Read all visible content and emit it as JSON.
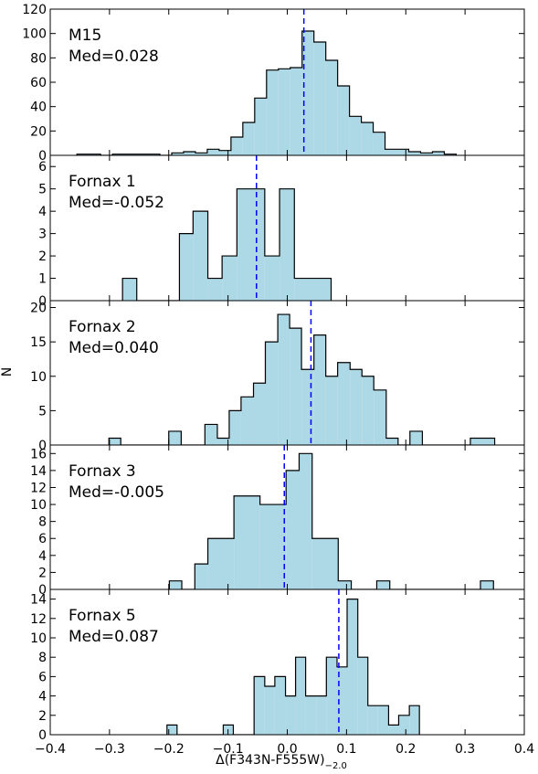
{
  "chart_data": {
    "type": "histogram",
    "shared_x": {
      "xlim": [
        -0.4,
        0.4
      ],
      "ticks": [
        -0.4,
        -0.3,
        -0.2,
        -0.1,
        0.0,
        0.1,
        0.2,
        0.3,
        0.4
      ],
      "tick_labels": [
        "−0.4",
        "−0.3",
        "−0.2",
        "−0.1",
        "0.0",
        "0.1",
        "0.2",
        "0.3",
        "0.4"
      ],
      "xlabel_main": "Δ(F343N-F555W)",
      "xlabel_sub": "−2.0"
    },
    "shared_ylabel": "N",
    "fill_color": "#add8e6",
    "median_line_color": "#0000ff",
    "panels": [
      {
        "name": "M15",
        "med_label": "Med=0.028",
        "median": 0.028,
        "ylim": [
          0,
          120
        ],
        "yticks": [
          0,
          20,
          40,
          60,
          80,
          100,
          120
        ],
        "bins": [
          [
            -0.355,
            -0.335,
            1
          ],
          [
            -0.335,
            -0.315,
            1
          ],
          [
            -0.315,
            -0.295,
            0
          ],
          [
            -0.295,
            -0.275,
            1
          ],
          [
            -0.275,
            -0.255,
            1
          ],
          [
            -0.255,
            -0.235,
            1
          ],
          [
            -0.235,
            -0.215,
            1
          ],
          [
            -0.215,
            -0.195,
            0
          ],
          [
            -0.195,
            -0.175,
            2
          ],
          [
            -0.175,
            -0.155,
            3
          ],
          [
            -0.155,
            -0.135,
            2
          ],
          [
            -0.135,
            -0.115,
            5
          ],
          [
            -0.115,
            -0.095,
            4
          ],
          [
            -0.095,
            -0.075,
            15
          ],
          [
            -0.075,
            -0.055,
            27
          ],
          [
            -0.055,
            -0.035,
            47
          ],
          [
            -0.035,
            -0.015,
            70
          ],
          [
            -0.015,
            0.005,
            71
          ],
          [
            0.005,
            0.025,
            72
          ],
          [
            0.025,
            0.045,
            102
          ],
          [
            0.045,
            0.065,
            93
          ],
          [
            0.065,
            0.085,
            78
          ],
          [
            0.085,
            0.105,
            57
          ],
          [
            0.105,
            0.125,
            32
          ],
          [
            0.125,
            0.145,
            27
          ],
          [
            0.145,
            0.165,
            19
          ],
          [
            0.165,
            0.185,
            5
          ],
          [
            0.185,
            0.205,
            5
          ],
          [
            0.205,
            0.225,
            3
          ],
          [
            0.225,
            0.245,
            2
          ],
          [
            0.245,
            0.265,
            3
          ],
          [
            0.265,
            0.285,
            1
          ]
        ]
      },
      {
        "name": "Fornax 1",
        "med_label": "Med=-0.052",
        "median": -0.052,
        "ylim": [
          0,
          6.5
        ],
        "yticks": [
          0,
          1,
          2,
          3,
          4,
          5,
          6
        ],
        "bins": [
          [
            -0.278,
            -0.254,
            1
          ],
          [
            -0.254,
            -0.182,
            0
          ],
          [
            -0.182,
            -0.159,
            3
          ],
          [
            -0.159,
            -0.134,
            4
          ],
          [
            -0.134,
            -0.11,
            1
          ],
          [
            -0.11,
            -0.085,
            2
          ],
          [
            -0.085,
            -0.038,
            5
          ],
          [
            -0.038,
            -0.013,
            2
          ],
          [
            -0.013,
            0.012,
            5
          ],
          [
            0.012,
            0.074,
            1
          ]
        ]
      },
      {
        "name": "Fornax 2",
        "med_label": "Med=0.040",
        "median": 0.04,
        "ylim": [
          0,
          21
        ],
        "yticks": [
          0,
          5,
          10,
          15,
          20
        ],
        "bins": [
          [
            -0.301,
            -0.281,
            1
          ],
          [
            -0.281,
            -0.2,
            0
          ],
          [
            -0.2,
            -0.179,
            2
          ],
          [
            -0.179,
            -0.139,
            0
          ],
          [
            -0.139,
            -0.118,
            3
          ],
          [
            -0.118,
            -0.098,
            1
          ],
          [
            -0.098,
            -0.078,
            5
          ],
          [
            -0.078,
            -0.057,
            7
          ],
          [
            -0.057,
            -0.037,
            9
          ],
          [
            -0.037,
            -0.016,
            15
          ],
          [
            -0.016,
            0.004,
            19
          ],
          [
            0.004,
            0.024,
            17
          ],
          [
            0.024,
            0.045,
            11
          ],
          [
            0.045,
            0.065,
            16
          ],
          [
            0.065,
            0.085,
            10
          ],
          [
            0.085,
            0.106,
            12
          ],
          [
            0.106,
            0.126,
            11
          ],
          [
            0.126,
            0.146,
            10
          ],
          [
            0.146,
            0.167,
            8
          ],
          [
            0.167,
            0.187,
            1
          ],
          [
            0.187,
            0.207,
            0
          ],
          [
            0.207,
            0.228,
            2
          ],
          [
            0.228,
            0.309,
            0
          ],
          [
            0.309,
            0.35,
            1
          ]
        ]
      },
      {
        "name": "Fornax 3",
        "med_label": "Med=-0.005",
        "median": -0.005,
        "ylim": [
          0,
          17
        ],
        "yticks": [
          0,
          2,
          4,
          6,
          8,
          10,
          12,
          14,
          16
        ],
        "bins": [
          [
            -0.199,
            -0.178,
            1
          ],
          [
            -0.178,
            -0.156,
            0
          ],
          [
            -0.156,
            -0.134,
            3
          ],
          [
            -0.134,
            -0.09,
            6
          ],
          [
            -0.09,
            -0.046,
            11
          ],
          [
            -0.046,
            -0.002,
            10
          ],
          [
            -0.002,
            0.02,
            14
          ],
          [
            0.02,
            0.042,
            16
          ],
          [
            0.042,
            0.086,
            6
          ],
          [
            0.086,
            0.108,
            1
          ],
          [
            0.108,
            0.151,
            0
          ],
          [
            0.151,
            0.173,
            1
          ],
          [
            0.173,
            0.326,
            0
          ],
          [
            0.326,
            0.348,
            1
          ]
        ]
      },
      {
        "name": "Fornax 5",
        "med_label": "Med=0.087",
        "median": 0.087,
        "ylim": [
          0,
          15
        ],
        "yticks": [
          0,
          2,
          4,
          6,
          8,
          10,
          12,
          14
        ],
        "bins": [
          [
            -0.203,
            -0.186,
            1
          ],
          [
            -0.186,
            -0.108,
            0
          ],
          [
            -0.108,
            -0.091,
            1
          ],
          [
            -0.091,
            -0.056,
            0
          ],
          [
            -0.056,
            -0.038,
            6
          ],
          [
            -0.038,
            -0.021,
            5
          ],
          [
            -0.021,
            -0.003,
            6
          ],
          [
            -0.003,
            0.014,
            4
          ],
          [
            0.014,
            0.031,
            8
          ],
          [
            0.031,
            0.049,
            4
          ],
          [
            0.049,
            0.066,
            4
          ],
          [
            0.066,
            0.084,
            8
          ],
          [
            0.084,
            0.101,
            7
          ],
          [
            0.101,
            0.119,
            14
          ],
          [
            0.119,
            0.136,
            8
          ],
          [
            0.136,
            0.153,
            3
          ],
          [
            0.153,
            0.171,
            3
          ],
          [
            0.171,
            0.188,
            1
          ],
          [
            0.188,
            0.206,
            2
          ],
          [
            0.206,
            0.223,
            3
          ]
        ]
      }
    ]
  }
}
